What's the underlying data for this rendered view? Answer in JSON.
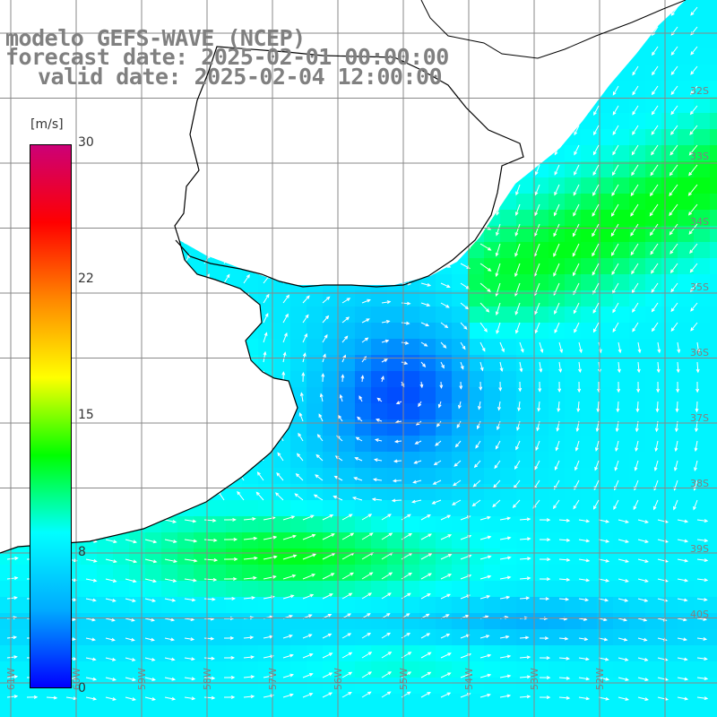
{
  "title": {
    "line1": "modelo GEFS-WAVE (NCEP)",
    "line2": "forecast date: 2025-02-01 00:00:00",
    "line3": "valid date: 2025-02-04 12:00:00"
  },
  "colorbar": {
    "unit": "[m/s]",
    "min": 0,
    "max": 30,
    "ticks": [
      "30",
      "22",
      "15",
      "8",
      "0"
    ],
    "tick_values": [
      30,
      22,
      15,
      8,
      0
    ],
    "stops": [
      "#0000ff",
      "#00aaff",
      "#00ffff",
      "#00ff00",
      "#ffff00",
      "#ff8800",
      "#ff0000",
      "#cc0077"
    ]
  },
  "map": {
    "lat_labels": [
      "32S",
      "33S",
      "34S",
      "35S",
      "36S",
      "37S",
      "38S",
      "39S",
      "40S"
    ],
    "lon_labels": [
      "61W",
      "60W",
      "59W",
      "58W",
      "57W",
      "56W",
      "55W",
      "54W",
      "53W",
      "52W"
    ],
    "colors": {
      "land": "#ffffff",
      "grid": "#888888",
      "coast": "#000000",
      "arrows": "#ffffff",
      "labels": "#808080"
    }
  }
}
